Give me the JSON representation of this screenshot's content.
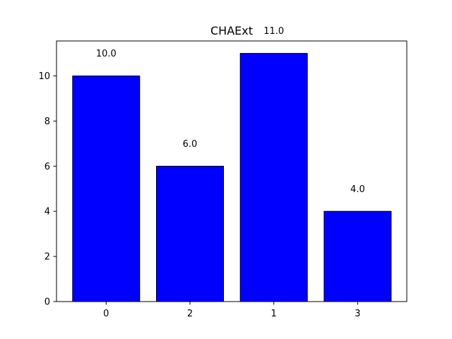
{
  "chart_data": {
    "type": "bar",
    "title": "CHAExt",
    "xlabel": "",
    "ylabel": "",
    "categories": [
      "0",
      "2",
      "1",
      "3"
    ],
    "values": [
      10,
      6,
      11,
      4
    ],
    "data_labels": [
      "10.0",
      "6.0",
      "11.0",
      "4.0"
    ],
    "ylim": [
      0,
      11.55
    ],
    "yticks": [
      0,
      2,
      4,
      6,
      8,
      10
    ],
    "ytick_labels": [
      "0",
      "2",
      "4",
      "6",
      "8",
      "10"
    ],
    "bar_color": "#0000ff",
    "edge_color": "#000000",
    "grid": false,
    "legend": "none"
  }
}
